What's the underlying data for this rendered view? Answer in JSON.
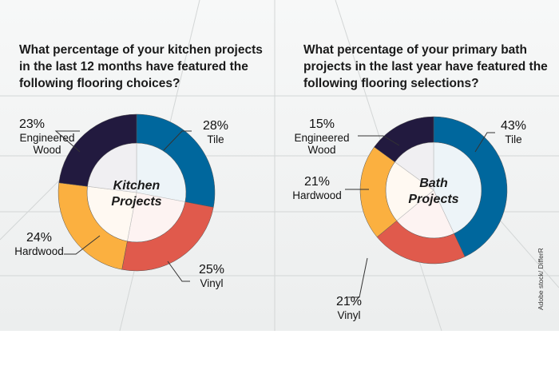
{
  "credit": "Adobe stock/ DifferR",
  "chart_data": [
    {
      "type": "pie",
      "donut": true,
      "title": "What percentage of your kitchen projects in the last 12 months have featured the following flooring choices?",
      "center_label": [
        "Kitchen",
        "Projects"
      ],
      "slices": [
        {
          "label": "Tile",
          "value": 28,
          "value_label": "28%",
          "color": "#00679d"
        },
        {
          "label": "Vinyl",
          "value": 25,
          "value_label": "25%",
          "color": "#e05a4c"
        },
        {
          "label": "Hardwood",
          "value": 24,
          "value_label": "24%",
          "color": "#fbb040"
        },
        {
          "label": "Engineered Wood",
          "value": 23,
          "value_label": "23%",
          "color": "#221a3f"
        }
      ]
    },
    {
      "type": "pie",
      "donut": true,
      "title": "What percentage of your primary bath projects in the last year have featured the following flooring selections?",
      "center_label": [
        "Bath",
        "Projects"
      ],
      "slices": [
        {
          "label": "Tile",
          "value": 43,
          "value_label": "43%",
          "color": "#00679d"
        },
        {
          "label": "Vinyl",
          "value": 21,
          "value_label": "21%",
          "color": "#e05a4c"
        },
        {
          "label": "Hardwood",
          "value": 21,
          "value_label": "21%",
          "color": "#fbb040"
        },
        {
          "label": "Engineered Wood",
          "value": 15,
          "value_label": "15%",
          "color": "#221a3f"
        }
      ]
    }
  ]
}
